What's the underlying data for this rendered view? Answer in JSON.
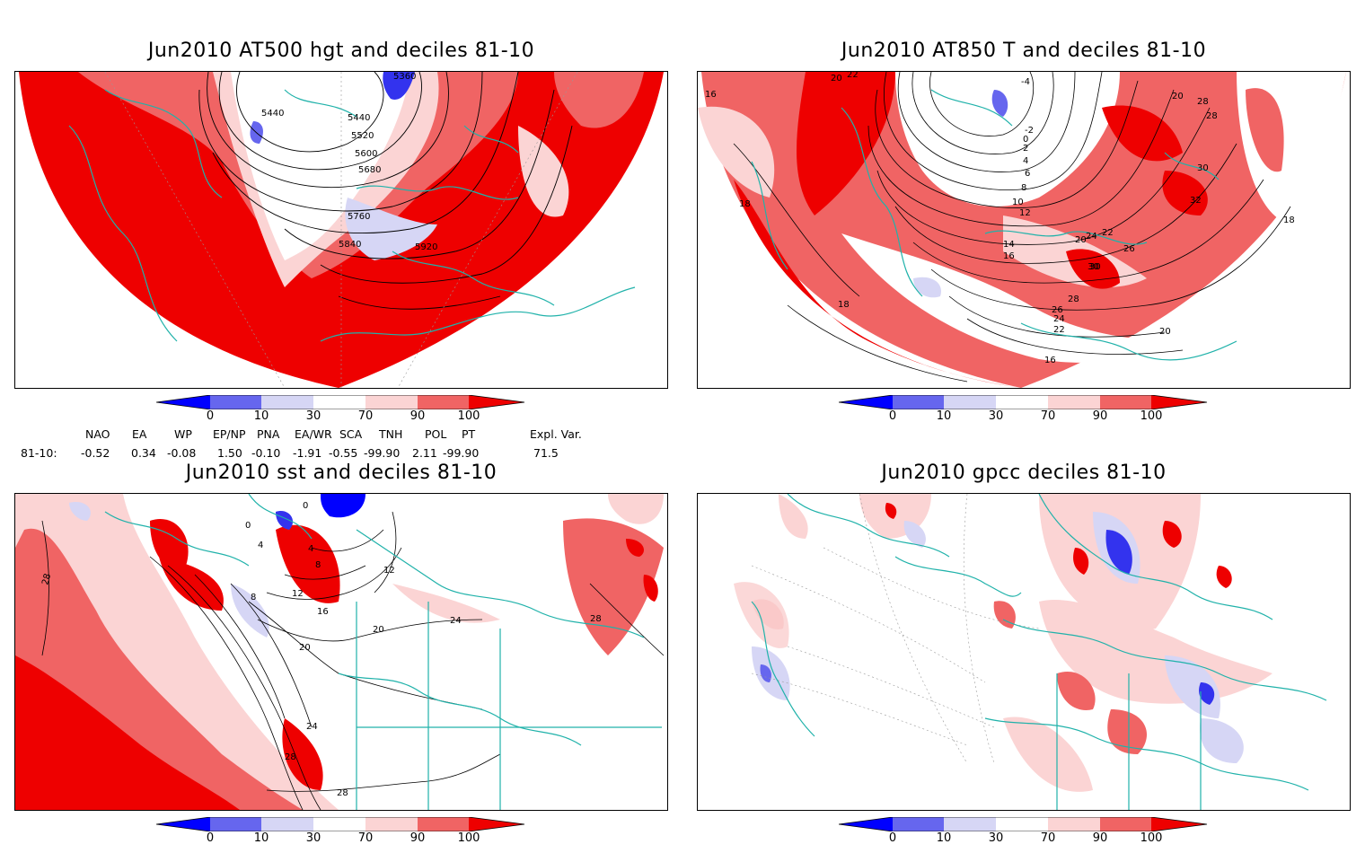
{
  "panels": [
    {
      "id": "hgt500",
      "title": "Jun2010 AT500 hgt and deciles 81-10",
      "contour_labels": [
        "5360",
        "5440",
        "5440",
        "5520",
        "5600",
        "5680",
        "5760",
        "5840",
        "5920"
      ]
    },
    {
      "id": "t850",
      "title": "Jun2010 AT850 T and deciles 81-10",
      "contour_labels": [
        "20",
        "22",
        "16",
        "-4",
        "-2",
        "0",
        "2",
        "4",
        "6",
        "8",
        "10",
        "12",
        "14",
        "16",
        "18",
        "18",
        "20",
        "22",
        "24",
        "26",
        "28",
        "30",
        "30",
        "32",
        "20",
        "16",
        "18",
        "20",
        "22",
        "24",
        "26",
        "28",
        "30",
        "28"
      ]
    },
    {
      "id": "sst",
      "title": "Jun2010 sst and deciles 81-10",
      "contour_labels": [
        "28",
        "0",
        "4",
        "8",
        "12",
        "16",
        "20",
        "24",
        "28",
        "28",
        "20",
        "24",
        "28",
        "12",
        "8",
        "4",
        "0"
      ]
    },
    {
      "id": "gpcc",
      "title": "Jun2010 gpcc deciles 81-10",
      "contour_labels": []
    }
  ],
  "colorbar": {
    "ticks": [
      "0",
      "10",
      "30",
      "70",
      "90",
      "100"
    ],
    "colors": [
      "#0000ff",
      "#6666ee",
      "#d6d6f5",
      "#ffffff",
      "#fbd4d4",
      "#f06464",
      "#ee0000"
    ]
  },
  "indices": {
    "headers": [
      "NAO",
      "EA",
      "WP",
      "EP/NP",
      "PNA",
      "EA/WR",
      "SCA",
      "TNH",
      "POL",
      "PT",
      "Expl. Var."
    ],
    "row_label": "81-10:",
    "values": [
      "-0.52",
      "0.34",
      "-0.08",
      "1.50",
      "-0.10",
      "-1.91",
      "-0.55",
      "-99.90",
      "2.11",
      "-99.90",
      "71.5"
    ]
  }
}
